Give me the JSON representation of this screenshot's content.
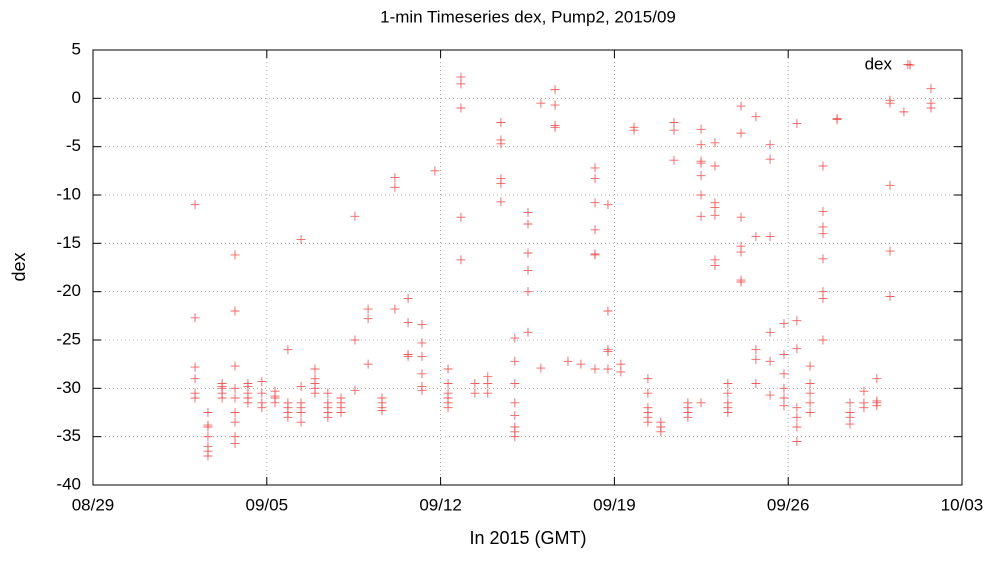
{
  "chart_data": {
    "type": "scatter",
    "title": "1-min Timeseries dex, Pump2, 2015/09",
    "xlabel": "In 2015 (GMT)",
    "ylabel": "dex",
    "xlim": [
      241,
      276
    ],
    "xticks": [
      {
        "value": 241,
        "label": "08/29"
      },
      {
        "value": 248,
        "label": "09/05"
      },
      {
        "value": 255,
        "label": "09/12"
      },
      {
        "value": 262,
        "label": "09/19"
      },
      {
        "value": 269,
        "label": "09/26"
      },
      {
        "value": 276,
        "label": "10/03"
      }
    ],
    "ylim": [
      -40,
      5
    ],
    "yticks": [
      -40,
      -35,
      -30,
      -25,
      -20,
      -15,
      -10,
      -5,
      0,
      5
    ],
    "grid": true,
    "legend": "top-right",
    "x": [
      245.11,
      245.11,
      245.11,
      245.11,
      245.11,
      245.11,
      245.63,
      245.63,
      245.63,
      245.63,
      245.63,
      245.63,
      245.63,
      246.2,
      246.2,
      246.2,
      246.2,
      246.2,
      246.72,
      246.72,
      246.72,
      246.72,
      246.72,
      246.72,
      246.72,
      246.72,
      246.72,
      247.24,
      247.24,
      247.24,
      247.24,
      247.24,
      247.8,
      247.8,
      247.8,
      247.8,
      248.33,
      248.33,
      248.33,
      248.33,
      248.85,
      248.85,
      248.85,
      248.85,
      248.85,
      249.38,
      249.38,
      249.38,
      249.38,
      249.38,
      249.38,
      249.94,
      249.94,
      249.94,
      249.94,
      249.94,
      250.46,
      250.46,
      250.46,
      250.46,
      250.46,
      250.99,
      250.99,
      250.99,
      250.99,
      251.55,
      251.55,
      251.55,
      252.08,
      252.08,
      252.08,
      252.64,
      252.64,
      252.64,
      252.64,
      253.16,
      253.16,
      253.16,
      253.69,
      253.69,
      253.69,
      253.69,
      254.25,
      254.25,
      254.25,
      254.25,
      254.25,
      254.25,
      254.77,
      255.3,
      255.3,
      255.3,
      255.3,
      255.3,
      255.3,
      255.82,
      255.82,
      255.82,
      255.82,
      255.82,
      256.38,
      256.38,
      256.9,
      256.9,
      256.9,
      257.43,
      257.43,
      257.43,
      257.43,
      257.43,
      257.43,
      257.99,
      257.99,
      257.99,
      257.99,
      257.99,
      257.99,
      257.99,
      257.99,
      258.52,
      258.52,
      258.52,
      258.52,
      258.52,
      258.52,
      259.04,
      259.04,
      259.61,
      259.61,
      259.61,
      259.61,
      260.13,
      260.65,
      261.22,
      261.22,
      261.22,
      261.22,
      261.22,
      261.22,
      261.22,
      261.74,
      261.74,
      261.74,
      261.74,
      261.74,
      262.26,
      262.26,
      262.79,
      262.79,
      263.35,
      263.35,
      263.35,
      263.35,
      263.35,
      263.35,
      263.87,
      263.87,
      263.87,
      264.4,
      264.4,
      264.4,
      264.96,
      264.96,
      264.96,
      264.96,
      265.49,
      265.49,
      265.49,
      265.49,
      265.49,
      265.49,
      265.49,
      265.49,
      266.05,
      266.05,
      266.05,
      266.05,
      266.05,
      266.05,
      266.05,
      266.57,
      266.57,
      266.57,
      266.57,
      266.57,
      267.1,
      267.1,
      267.1,
      267.1,
      267.1,
      267.1,
      267.1,
      267.7,
      267.7,
      267.7,
      267.7,
      267.7,
      268.27,
      268.27,
      268.27,
      268.27,
      268.27,
      268.27,
      268.83,
      268.83,
      268.83,
      268.83,
      268.83,
      268.83,
      269.35,
      269.35,
      269.35,
      269.35,
      269.35,
      269.35,
      269.35,
      269.88,
      269.88,
      269.88,
      269.88,
      269.88,
      270.4,
      270.4,
      270.4,
      270.4,
      270.4,
      270.4,
      270.4,
      270.4,
      270.97,
      270.97,
      271.49,
      271.49,
      271.49,
      271.49,
      272.05,
      272.05,
      272.05,
      272.57,
      272.57,
      272.57,
      272.57,
      273.1,
      273.1,
      273.1,
      273.1,
      273.1,
      273.66,
      273.82,
      274.75,
      274.75,
      274.75
    ],
    "series": [
      {
        "name": "dex",
        "color": "#ee4444",
        "values": [
          -11,
          -22.7,
          -27.8,
          -29,
          -30.5,
          -31,
          -32.5,
          -33.8,
          -34,
          -35,
          -36,
          -36.5,
          -37,
          -29.5,
          -30,
          -30.5,
          -31,
          -29.8,
          -16.2,
          -22,
          -27.7,
          -30,
          -31,
          -32.5,
          -33.5,
          -35,
          -35.7,
          -29.5,
          -30.5,
          -31,
          -29.8,
          -31.5,
          -29.3,
          -30.5,
          -31.5,
          -32,
          -30.3,
          -31,
          -31.5,
          -30.8,
          -26,
          -31.5,
          -32,
          -32.5,
          -33,
          -14.6,
          -29.8,
          -31.5,
          -32,
          -32.5,
          -33.5,
          -28,
          -29,
          -29.5,
          -30,
          -30.5,
          -30.5,
          -31.5,
          -32,
          -32.5,
          -33,
          -31,
          -31.5,
          -32,
          -32.5,
          -12.2,
          -25,
          -30.2,
          -21.8,
          -22.8,
          -27.5,
          -31,
          -31.5,
          -32,
          -32.3,
          -8.2,
          -9.2,
          -21.8,
          -20.7,
          -23.2,
          -26.5,
          -26.7,
          -23.4,
          -25.3,
          -26.7,
          -28.5,
          -29.8,
          -30.2,
          -7.5,
          -28,
          -29.5,
          -30.5,
          -31,
          -31.5,
          -32,
          2.2,
          1.5,
          -1,
          -12.3,
          -16.7,
          -29.5,
          -30.5,
          -28.8,
          -29.5,
          -30.5,
          -2.5,
          -4.3,
          -4.7,
          -8.3,
          -8.8,
          -10.7,
          -24.8,
          -27.2,
          -29.5,
          -31.5,
          -32.8,
          -34,
          -34.5,
          -35,
          -11.8,
          -13,
          -16,
          -17.8,
          -20,
          -24.2,
          -0.5,
          -27.9,
          0.9,
          -0.7,
          -2.8,
          -3,
          -27.2,
          -27.5,
          -7.2,
          -8.3,
          -10.8,
          -13.6,
          -16.1,
          -16.2,
          -28,
          -11,
          -22,
          -26,
          -26.2,
          -28,
          -27.5,
          -28.3,
          -3,
          -3.3,
          -29,
          -30.5,
          -32,
          -32.5,
          -33,
          -33.5,
          -33.5,
          -34,
          -34.5,
          -2.5,
          -3.3,
          -6.4,
          -31.5,
          -32,
          -32.5,
          -33,
          -3.2,
          -4.8,
          -6.5,
          -6.7,
          -8,
          -10,
          -12.2,
          -31.5,
          -4.6,
          -7,
          -10.8,
          -11.3,
          -12.1,
          -16.7,
          -17.3,
          -29.5,
          -30.5,
          -31.5,
          -32,
          -32.5,
          -0.8,
          -3.6,
          -12.3,
          -15.3,
          -15.9,
          -18.8,
          -19,
          -1.9,
          -14.3,
          -26,
          -27,
          -29.5,
          -4.8,
          -6.3,
          -14.3,
          -24.2,
          -27.2,
          -30.7,
          -23.3,
          -26.5,
          -28.5,
          -30,
          -31,
          -31.8,
          -2.6,
          -23,
          -25.9,
          -32,
          -33,
          -34,
          -35.5,
          -27.7,
          -29.5,
          -30.5,
          -31.5,
          -32.5,
          -7,
          -11.7,
          -13.3,
          -14,
          -16.6,
          -20,
          -20.7,
          -25,
          -2.1,
          -2.2,
          -31.5,
          -32.5,
          -33,
          -33.7,
          -30.3,
          -31.5,
          -32,
          -29,
          -31.3,
          -31.5,
          -31.8,
          -0.2,
          -0.5,
          -9,
          -15.8,
          -20.5,
          -1.4,
          3.5,
          1,
          -0.5,
          -1
        ]
      }
    ]
  }
}
